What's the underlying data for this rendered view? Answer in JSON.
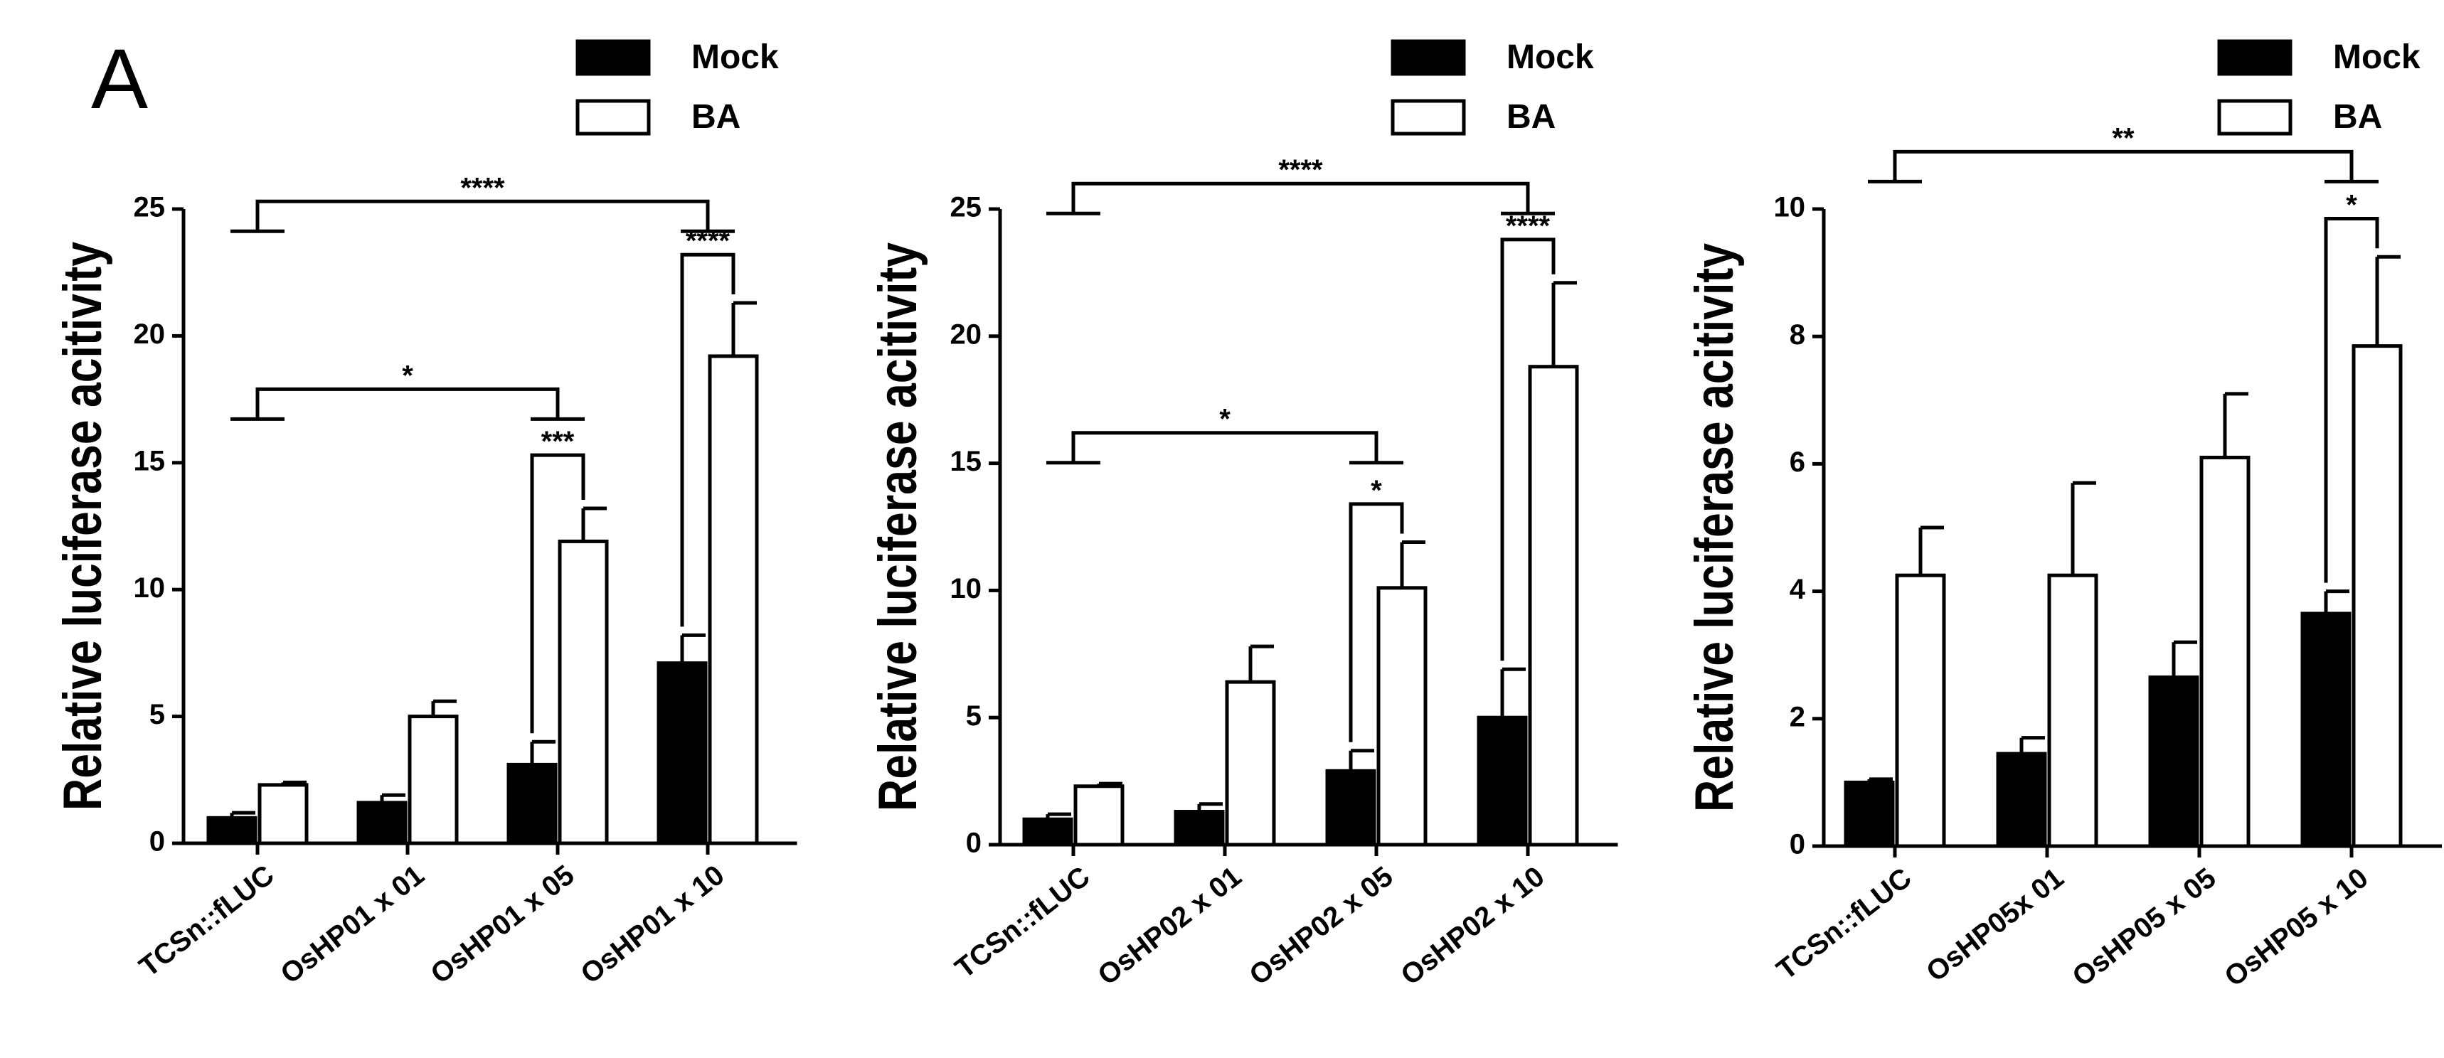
{
  "figure": {
    "panel_label": "A"
  },
  "chart_data": [
    {
      "type": "bar",
      "ylabel": "Relative luciferase acitivity",
      "ylim": [
        0,
        25
      ],
      "yticks": [
        0,
        5,
        10,
        15,
        20,
        25
      ],
      "categories": [
        "TCSn::fLUC",
        "OsHP01 x 01",
        "OsHP01 x 05",
        "OsHP01 x 10"
      ],
      "series": [
        {
          "name": "Mock",
          "values": [
            1.0,
            1.6,
            3.1,
            7.1
          ],
          "errors": [
            0.2,
            0.3,
            0.9,
            1.1
          ],
          "fill": "#000000"
        },
        {
          "name": "BA",
          "values": [
            2.3,
            5.0,
            11.9,
            19.2
          ],
          "errors": [
            0.1,
            0.6,
            1.3,
            2.1
          ],
          "fill": "#ffffff"
        }
      ],
      "legend": {
        "position": "top-right",
        "items": [
          "Mock",
          "BA"
        ]
      },
      "significance": [
        {
          "label": "****",
          "type": "group",
          "from": 0,
          "to": 3,
          "y": 25.3
        },
        {
          "label": "*",
          "type": "group",
          "from": 0,
          "to": 2,
          "y": 17.9
        },
        {
          "label": "***",
          "type": "pair",
          "cat": 2,
          "y": 15.3
        },
        {
          "label": "****",
          "type": "pair",
          "cat": 3,
          "y": 23.2
        }
      ]
    },
    {
      "type": "bar",
      "ylabel": "Relative luciferase acitivity",
      "ylim": [
        0,
        25
      ],
      "yticks": [
        0,
        5,
        10,
        15,
        20,
        25
      ],
      "categories": [
        "TCSn::fLUC",
        "OsHP02 x 01",
        "OsHP02 x 05",
        "OsHP02 x 10"
      ],
      "series": [
        {
          "name": "Mock",
          "values": [
            1.0,
            1.3,
            2.9,
            5.0
          ],
          "errors": [
            0.2,
            0.3,
            0.8,
            1.9
          ],
          "fill": "#000000"
        },
        {
          "name": "BA",
          "values": [
            2.3,
            6.4,
            10.1,
            18.8
          ],
          "errors": [
            0.1,
            1.4,
            1.8,
            3.3
          ],
          "fill": "#ffffff"
        }
      ],
      "legend": {
        "position": "top-right",
        "items": [
          "Mock",
          "BA"
        ]
      },
      "significance": [
        {
          "label": "****",
          "type": "group",
          "from": 0,
          "to": 3,
          "y": 26.0
        },
        {
          "label": "*",
          "type": "group",
          "from": 0,
          "to": 2,
          "y": 16.2
        },
        {
          "label": "*",
          "type": "pair",
          "cat": 2,
          "y": 13.4
        },
        {
          "label": "****",
          "type": "pair",
          "cat": 3,
          "y": 23.8
        }
      ]
    },
    {
      "type": "bar",
      "ylabel": "Relative luciferase acitivity",
      "ylim": [
        0,
        10
      ],
      "yticks": [
        0,
        2,
        4,
        6,
        8,
        10
      ],
      "categories": [
        "TCSn::fLUC",
        "OsHP05x 01",
        "OsHP05 x 05",
        "OsHP05 x 10"
      ],
      "series": [
        {
          "name": "Mock",
          "values": [
            1.0,
            1.45,
            2.65,
            3.65
          ],
          "errors": [
            0.05,
            0.25,
            0.55,
            0.35
          ],
          "fill": "#000000"
        },
        {
          "name": "BA",
          "values": [
            4.25,
            4.25,
            6.1,
            7.85
          ],
          "errors": [
            0.75,
            1.45,
            1.0,
            1.4
          ],
          "fill": "#ffffff"
        }
      ],
      "legend": {
        "position": "top-right",
        "items": [
          "Mock",
          "BA"
        ]
      },
      "significance": [
        {
          "label": "**",
          "type": "group",
          "from": 0,
          "to": 3,
          "y": 10.9
        },
        {
          "label": "*",
          "type": "pair",
          "cat": 3,
          "y": 9.85
        }
      ]
    }
  ]
}
